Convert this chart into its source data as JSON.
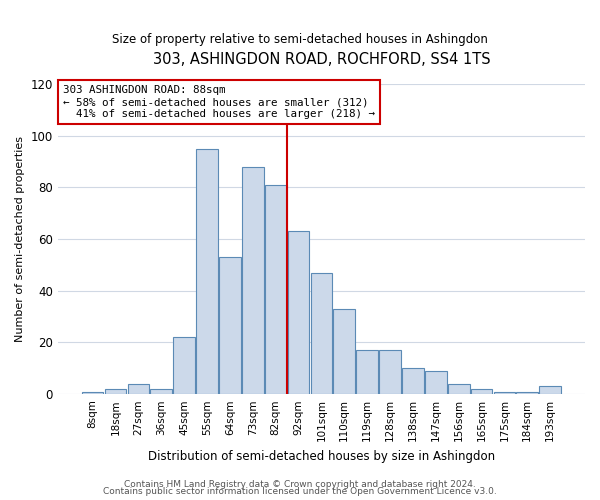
{
  "title": "303, ASHINGDON ROAD, ROCHFORD, SS4 1TS",
  "subtitle": "Size of property relative to semi-detached houses in Ashingdon",
  "xlabel": "Distribution of semi-detached houses by size in Ashingdon",
  "ylabel": "Number of semi-detached properties",
  "property_label": "303 ASHINGDON ROAD: 88sqm",
  "pct_smaller": 58,
  "pct_larger": 41,
  "n_smaller": 312,
  "n_larger": 218,
  "footer1": "Contains HM Land Registry data © Crown copyright and database right 2024.",
  "footer2": "Contains public sector information licensed under the Open Government Licence v3.0.",
  "categories": [
    "8sqm",
    "18sqm",
    "27sqm",
    "36sqm",
    "45sqm",
    "55sqm",
    "64sqm",
    "73sqm",
    "82sqm",
    "92sqm",
    "101sqm",
    "110sqm",
    "119sqm",
    "128sqm",
    "138sqm",
    "147sqm",
    "156sqm",
    "165sqm",
    "175sqm",
    "184sqm",
    "193sqm"
  ],
  "values": [
    1,
    2,
    4,
    2,
    22,
    95,
    53,
    88,
    81,
    63,
    47,
    33,
    17,
    17,
    10,
    9,
    4,
    2,
    1,
    1,
    3
  ],
  "bar_color": "#ccd9ea",
  "bar_edge_color": "#5b8ab5",
  "line_color": "#cc0000",
  "box_edge_color": "#cc0000",
  "bg_color": "#ffffff",
  "grid_color": "#d0d8e4",
  "ylim": [
    0,
    120
  ],
  "yticks": [
    0,
    20,
    40,
    60,
    80,
    100,
    120
  ],
  "line_x_index": 8.5
}
